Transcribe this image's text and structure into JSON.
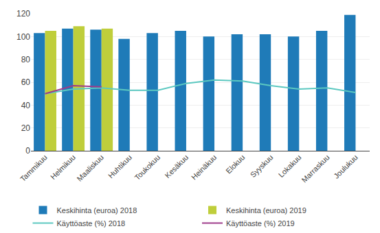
{
  "chart_data": {
    "type": "bar",
    "categories": [
      "Tammikuu",
      "Helmikuu",
      "Maaliskuu",
      "Huhtikuu",
      "Toukokuu",
      "Kesäkuu",
      "Heinäkuu",
      "Elokuu",
      "Syyskuu",
      "Lokakuu",
      "Marraskuu",
      "Joulukuu"
    ],
    "series": [
      {
        "name": "Keskihinta (euroa) 2018",
        "type": "bar",
        "color": "#1f7bb8",
        "values": [
          103,
          107,
          106,
          98,
          103,
          105,
          100,
          102,
          102,
          100,
          105,
          119
        ]
      },
      {
        "name": "Keskihinta (euroa) 2019",
        "type": "bar",
        "color": "#bfce3b",
        "values": [
          105,
          109,
          107,
          null,
          null,
          null,
          null,
          null,
          null,
          null,
          null,
          null
        ]
      },
      {
        "name": "Käyttöaste (%) 2018",
        "type": "line",
        "color": "#5bc8c0",
        "values": [
          50,
          54,
          55,
          53,
          53,
          59,
          62,
          61,
          57,
          54,
          55,
          51
        ]
      },
      {
        "name": "Käyttöaste (%) 2019",
        "type": "line",
        "color": "#9e3a8a",
        "values": [
          50,
          57,
          56,
          null,
          null,
          null,
          null,
          null,
          null,
          null,
          null,
          null
        ]
      }
    ],
    "ylim": [
      0,
      120
    ],
    "yticks": [
      0,
      20,
      40,
      60,
      80,
      100,
      120
    ],
    "grid": true,
    "legend": "bottom"
  }
}
